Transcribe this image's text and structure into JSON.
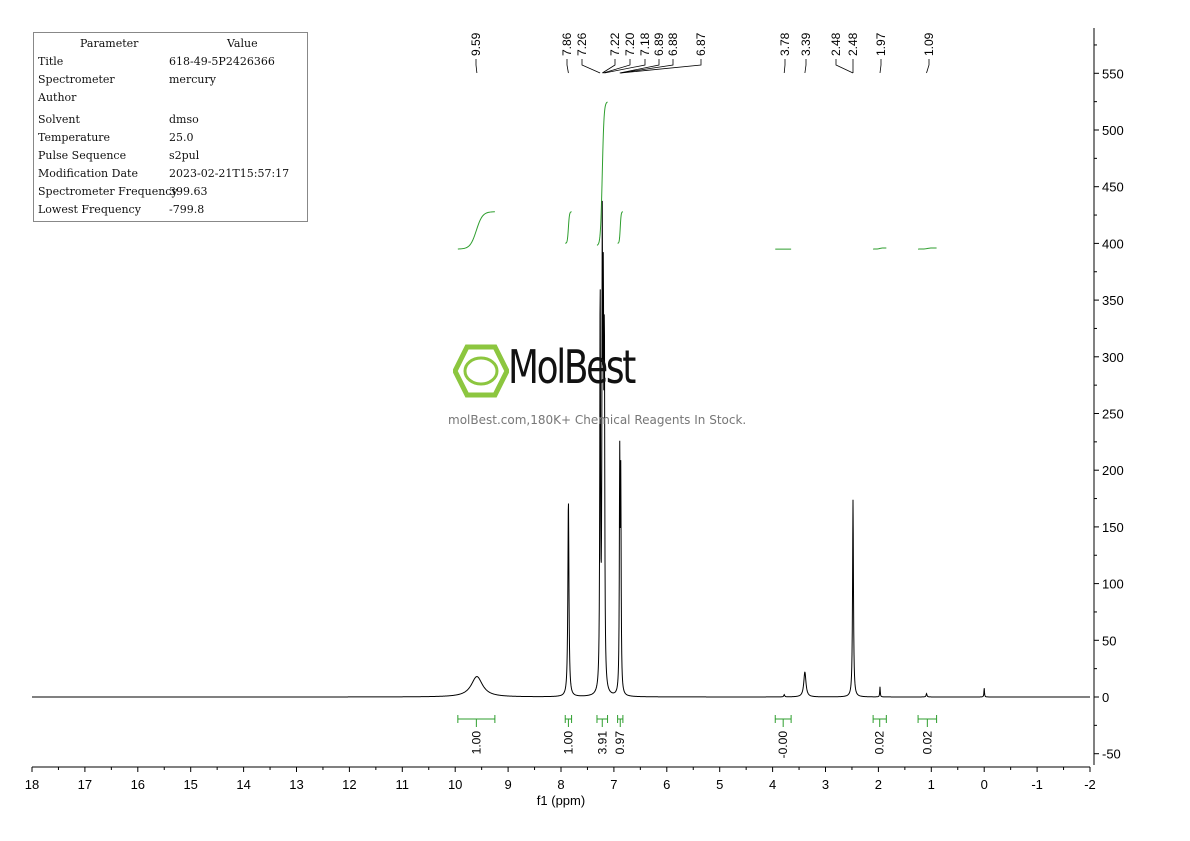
{
  "params": {
    "header": {
      "key": "Parameter",
      "value": "Value"
    },
    "rows": [
      {
        "key": "Title",
        "value": "618-49-5P2426366"
      },
      {
        "key": "Spectrometer",
        "value": "mercury"
      },
      {
        "key": "Author",
        "value": ""
      },
      {
        "key": "Solvent",
        "value": "dmso"
      },
      {
        "key": "Temperature",
        "value": "25.0"
      },
      {
        "key": "Pulse Sequence",
        "value": "s2pul"
      },
      {
        "key": "Modification Date",
        "value": "2023-02-21T15:57:17"
      },
      {
        "key": "Spectrometer Frequency",
        "value": "399.63"
      },
      {
        "key": "Lowest Frequency",
        "value": "-799.8"
      }
    ]
  },
  "watermark": {
    "name": "MolBest",
    "tagline": "molBest.com,180K+ Chemical Reagents In Stock.",
    "color": "#8cc63f"
  },
  "chart_data": {
    "type": "line",
    "xlabel": "f1 (ppm)",
    "ylabel": "",
    "xlim": [
      18,
      -2
    ],
    "ylim": [
      -60,
      590
    ],
    "x_ticks": [
      18,
      17,
      16,
      15,
      14,
      13,
      12,
      11,
      10,
      9,
      8,
      7,
      6,
      5,
      4,
      3,
      2,
      1,
      0,
      -1,
      -2
    ],
    "y_ticks": [
      -50,
      0,
      50,
      100,
      150,
      200,
      250,
      300,
      350,
      400,
      450,
      500,
      550
    ],
    "spectrum_color": "#000000",
    "integral_color": "#2e9e2e",
    "peaks": [
      {
        "ppm": 9.59,
        "height": 18,
        "width": 0.13
      },
      {
        "ppm": 7.86,
        "height": 174,
        "width": 0.012
      },
      {
        "ppm": 7.26,
        "height": 355,
        "width": 0.008
      },
      {
        "ppm": 7.22,
        "height": 372,
        "width": 0.008
      },
      {
        "ppm": 7.2,
        "height": 300,
        "width": 0.008
      },
      {
        "ppm": 7.18,
        "height": 290,
        "width": 0.008
      },
      {
        "ppm": 6.89,
        "height": 200,
        "width": 0.008
      },
      {
        "ppm": 6.87,
        "height": 180,
        "width": 0.008
      },
      {
        "ppm": 3.78,
        "height": 2,
        "width": 0.01
      },
      {
        "ppm": 3.39,
        "height": 22,
        "width": 0.025
      },
      {
        "ppm": 2.48,
        "height": 174,
        "width": 0.01
      },
      {
        "ppm": 1.97,
        "height": 9,
        "width": 0.006
      },
      {
        "ppm": 1.09,
        "height": 3,
        "width": 0.01
      },
      {
        "ppm": 0.0,
        "height": 8,
        "width": 0.006
      }
    ],
    "peak_labels": [
      "9.59",
      "7.86",
      "7.26",
      "7.22",
      "7.20",
      "7.18",
      "6.89",
      "6.88",
      "6.87",
      "3.78",
      "3.39",
      "2.48",
      "2.48",
      "1.97",
      "1.09"
    ],
    "integrals": [
      {
        "from": 9.95,
        "to": 9.25,
        "value": "1.00",
        "y_start": 395,
        "y_end": 428
      },
      {
        "from": 7.92,
        "to": 7.8,
        "value": "1.00",
        "y_start": 400,
        "y_end": 428
      },
      {
        "from": 7.32,
        "to": 7.12,
        "value": "3.91",
        "y_start": 398,
        "y_end": 525
      },
      {
        "from": 6.93,
        "to": 6.83,
        "value": "0.97",
        "y_start": 400,
        "y_end": 428
      },
      {
        "from": 3.95,
        "to": 3.65,
        "value": "-0.00",
        "y_start": 395,
        "y_end": 395
      },
      {
        "from": 2.1,
        "to": 1.85,
        "value": "0.02",
        "y_start": 395,
        "y_end": 396
      },
      {
        "from": 1.25,
        "to": 0.9,
        "value": "0.02",
        "y_start": 395,
        "y_end": 396
      }
    ]
  }
}
